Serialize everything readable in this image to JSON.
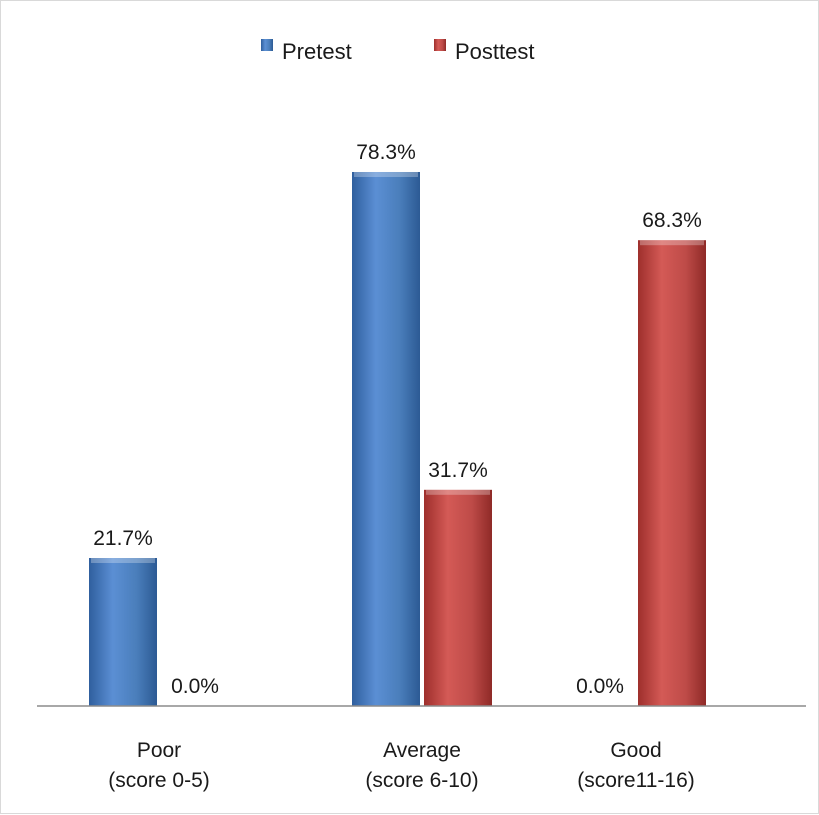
{
  "chart_data": {
    "type": "bar",
    "categories": [
      [
        "Poor",
        "(score 0-5)"
      ],
      [
        "Average",
        "(score 6-10)"
      ],
      [
        "Good",
        "(score11-16)"
      ]
    ],
    "series": [
      {
        "name": "Pretest",
        "values": [
          21.7,
          78.3,
          0.0
        ],
        "labels": [
          "21.7%",
          "78.3%",
          "0.0%"
        ],
        "color": "#4a7ebb"
      },
      {
        "name": "Posttest",
        "values": [
          0.0,
          31.7,
          68.3
        ],
        "labels": [
          "0.0%",
          "31.7%",
          "68.3%"
        ],
        "color": "#be4b48"
      }
    ],
    "title": "",
    "xlabel": "",
    "ylabel": "",
    "ylim": [
      0,
      100
    ],
    "grid": false,
    "legend": "top-center"
  }
}
